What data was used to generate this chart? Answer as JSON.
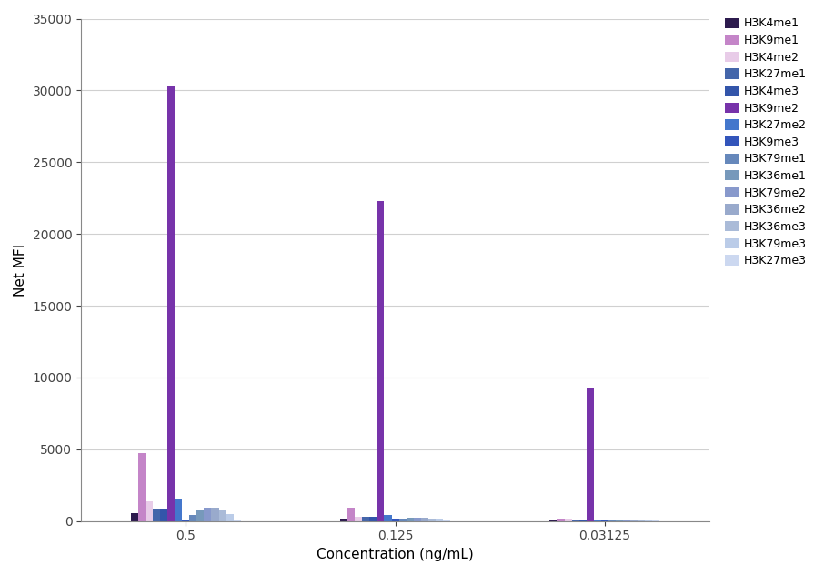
{
  "title": "",
  "xlabel": "Concentration (ng/mL)",
  "ylabel": "Net MFI",
  "concentrations": [
    "0.5",
    "0.125",
    "0.03125"
  ],
  "series": [
    {
      "label": "H3K4me1",
      "color": "#2d1b4e",
      "values": [
        580,
        180,
        50
      ]
    },
    {
      "label": "H3K9me1",
      "color": "#c485c8",
      "values": [
        4750,
        950,
        200
      ]
    },
    {
      "label": "H3K4me2",
      "color": "#e8cce8",
      "values": [
        1350,
        330,
        150
      ]
    },
    {
      "label": "H3K27me1",
      "color": "#4466aa",
      "values": [
        850,
        280,
        60
      ]
    },
    {
      "label": "H3K4me3",
      "color": "#3355aa",
      "values": [
        850,
        280,
        60
      ]
    },
    {
      "label": "H3K9me2",
      "color": "#7733aa",
      "values": [
        30300,
        22300,
        9250
      ]
    },
    {
      "label": "H3K27me2",
      "color": "#4477cc",
      "values": [
        1500,
        450,
        70
      ]
    },
    {
      "label": "H3K9me3",
      "color": "#3355bb",
      "values": [
        130,
        150,
        40
      ]
    },
    {
      "label": "H3K79me1",
      "color": "#6688bb",
      "values": [
        450,
        180,
        50
      ]
    },
    {
      "label": "H3K36me1",
      "color": "#7799bb",
      "values": [
        750,
        230,
        60
      ]
    },
    {
      "label": "H3K79me2",
      "color": "#8899cc",
      "values": [
        950,
        250,
        60
      ]
    },
    {
      "label": "H3K36me2",
      "color": "#99aacc",
      "values": [
        950,
        230,
        60
      ]
    },
    {
      "label": "H3K36me3",
      "color": "#aabbd8",
      "values": [
        750,
        200,
        50
      ]
    },
    {
      "label": "H3K79me3",
      "color": "#bbcce8",
      "values": [
        500,
        170,
        50
      ]
    },
    {
      "label": "H3K27me3",
      "color": "#ccd8f0",
      "values": [
        130,
        100,
        40
      ]
    }
  ],
  "ylim": [
    0,
    35000
  ],
  "yticks": [
    0,
    5000,
    10000,
    15000,
    20000,
    25000,
    30000,
    35000
  ],
  "figsize": [
    9.06,
    6.32
  ],
  "dpi": 100,
  "bg_color": "#ffffff",
  "grid_color": "#d0d0d0"
}
